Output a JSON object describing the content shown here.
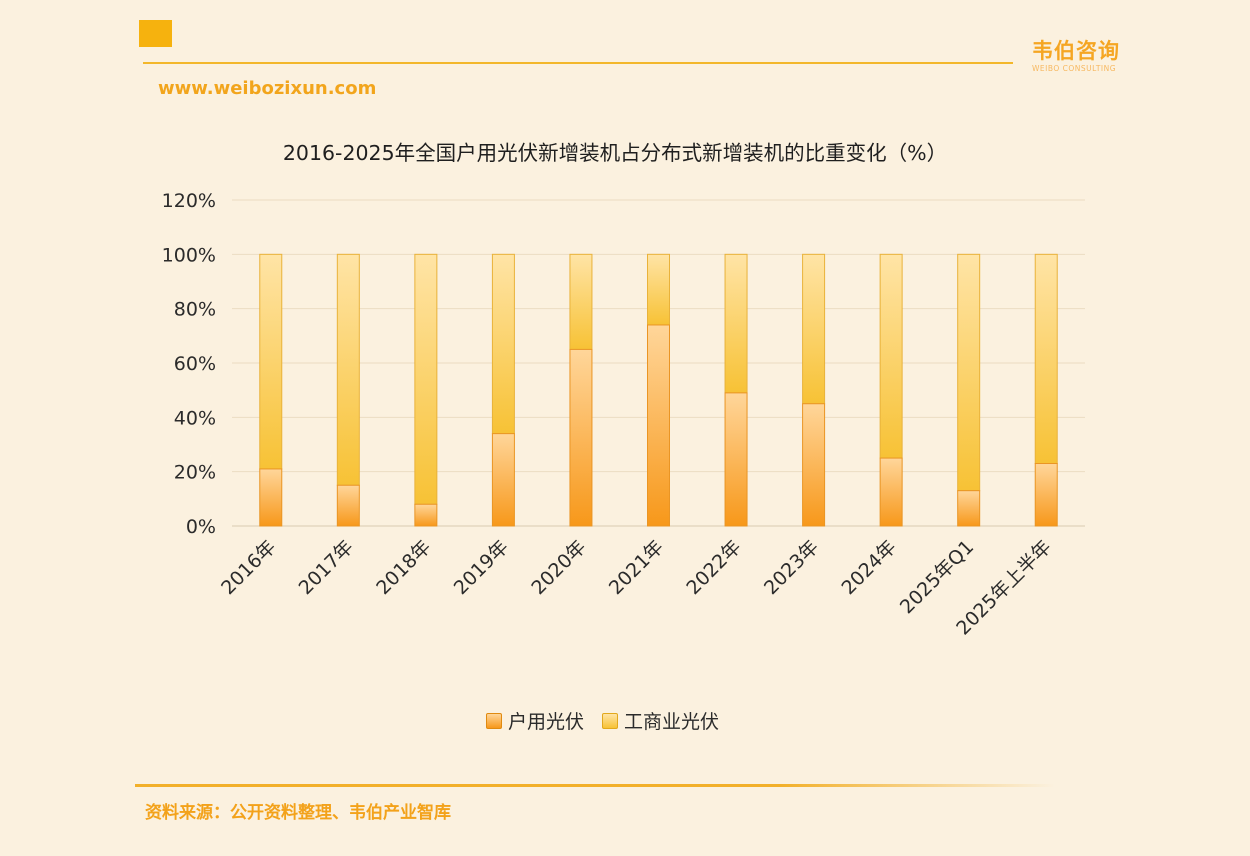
{
  "header": {
    "website": "www.weibozixun.com",
    "brand_cn": "韦伯咨询",
    "brand_en": "WEIBO CONSULTING"
  },
  "footer": {
    "source": "资料来源：公开资料整理、韦伯产业智库"
  },
  "colors": {
    "background": "#fbf1df",
    "accent": "#f6b20e",
    "residential_top": "#ffd28a",
    "residential_bottom": "#f79a1a",
    "commercial_top": "#ffe3a0",
    "commercial_bottom": "#f8c33a"
  },
  "chart_data": {
    "type": "bar",
    "stacked": true,
    "title": "2016-2025年全国户用光伏新增装机占分布式新增装机的比重变化（%）",
    "categories": [
      "2016年",
      "2017年",
      "2018年",
      "2019年",
      "2020年",
      "2021年",
      "2022年",
      "2023年",
      "2024年",
      "2025年Q1",
      "2025年上半年"
    ],
    "series": [
      {
        "name": "户用光伏",
        "values": [
          21,
          15,
          8,
          34,
          65,
          74,
          49,
          45,
          25,
          13,
          23
        ]
      },
      {
        "name": "工商业光伏",
        "values": [
          79,
          85,
          92,
          66,
          35,
          26,
          51,
          55,
          75,
          87,
          77
        ]
      }
    ],
    "ylim": [
      0,
      120
    ],
    "yticks": [
      "0%",
      "20%",
      "40%",
      "60%",
      "80%",
      "100%",
      "120%"
    ],
    "grid": true,
    "legend_position": "bottom"
  }
}
